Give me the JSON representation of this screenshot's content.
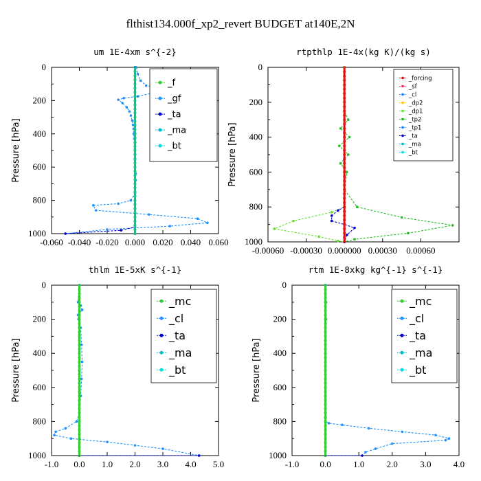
{
  "title": "flthist134.000f_xp2_revert  BUDGET at140E,2N",
  "chart_data": [
    {
      "type": "line",
      "title": "um  1E-4xm s^{-2}",
      "ylabel": "Pressure [hPa]",
      "xlim": [
        -0.06,
        0.06
      ],
      "ylim": [
        1000,
        0
      ],
      "xticks": [
        "-0.060",
        "-0.040",
        "-0.020",
        "0.000",
        "0.020",
        "0.040",
        "0.060"
      ],
      "yticks": [
        "0",
        "200",
        "400",
        "600",
        "800",
        "1000"
      ],
      "legend": [
        "_f",
        "_gf",
        "_ta",
        "_ma",
        "_bt"
      ],
      "series": [
        {
          "name": "_gf",
          "color": "#1e90ff",
          "x": [
            0.001,
            0.002,
            0.004,
            0.008,
            0.02,
            0.036,
            0.015,
            0.002,
            -0.008,
            -0.012,
            -0.009,
            -0.006,
            -0.004,
            -0.003,
            -0.002,
            -0.0015,
            -0.001,
            -0.001,
            -0.0005,
            0,
            0,
            0,
            0,
            0,
            0.0005,
            0.0005,
            0,
            0,
            -0.003,
            -0.012,
            -0.03,
            -0.028,
            0.01,
            0.045,
            0.052,
            0.025,
            -0.02,
            -0.05
          ],
          "y": [
            0,
            40,
            80,
            110,
            125,
            135,
            150,
            175,
            185,
            195,
            215,
            240,
            265,
            290,
            320,
            345,
            370,
            400,
            430,
            460,
            490,
            520,
            560,
            600,
            640,
            680,
            720,
            760,
            800,
            820,
            830,
            860,
            885,
            910,
            935,
            955,
            975,
            1000
          ]
        },
        {
          "name": "_ta",
          "color": "#0000cc",
          "x": [
            0,
            0,
            0,
            -0.01,
            -0.05
          ],
          "y": [
            0,
            900,
            960,
            980,
            1000
          ]
        },
        {
          "name": "_f",
          "color": "#33cc33",
          "x": [
            0,
            0
          ],
          "y": [
            0,
            1000
          ]
        },
        {
          "name": "_bt",
          "color": "#00cc88",
          "x": [
            0,
            0
          ],
          "y": [
            0,
            1000
          ]
        }
      ]
    },
    {
      "type": "line",
      "title": "rtpthlp  1E-4x(kg K)/(kg s)",
      "ylabel": "Pressure [hPa]",
      "xlim": [
        -0.0006,
        0.0009
      ],
      "ylim": [
        1000,
        0
      ],
      "xticks": [
        "-0.00060",
        "-0.00030",
        "0.000000",
        "0.00030",
        "0.00060"
      ],
      "yticks": [
        "0",
        "200",
        "400",
        "600",
        "800",
        "1000"
      ],
      "legend": [
        "_forcing",
        "_sf",
        "_cl",
        "_dp2",
        "_dp1",
        "_tp2",
        "_tp1",
        "_ta",
        "_ma",
        "_bt"
      ],
      "series": [
        {
          "name": "_tp2",
          "color": "#22bb22",
          "x": [
            0,
            0,
            3e-05,
            -3e-05,
            4e-05,
            -4e-05,
            3e-05,
            -3e-05,
            2e-05,
            0,
            0.0001,
            0.00045,
            0.00085,
            0.0005,
            8e-05,
            0
          ],
          "y": [
            0,
            250,
            300,
            350,
            400,
            450,
            500,
            550,
            600,
            700,
            800,
            860,
            905,
            950,
            985,
            1000
          ]
        },
        {
          "name": "_dp1",
          "color": "#66dd33",
          "x": [
            0,
            0,
            -0.0001,
            -0.0004,
            -0.00055,
            -0.0002,
            -5e-05,
            0
          ],
          "y": [
            0,
            800,
            830,
            880,
            925,
            970,
            995,
            1000
          ]
        },
        {
          "name": "_ta",
          "color": "#0000cc",
          "x": [
            0,
            -5e-05,
            -0.0001,
            -0.0001,
            0,
            8e-05,
            2e-05,
            0
          ],
          "y": [
            800,
            820,
            850,
            880,
            900,
            920,
            960,
            1000
          ]
        },
        {
          "name": "_forcing",
          "color": "#dd1111",
          "x": [
            0,
            0
          ],
          "y": [
            0,
            1000
          ]
        }
      ]
    },
    {
      "type": "line",
      "title": "thlm  1E-5xK s^{-1}",
      "ylabel": "Pressure [hPa]",
      "xlim": [
        -1.0,
        5.0
      ],
      "ylim": [
        1000,
        0
      ],
      "xticks": [
        "-1.0",
        "0.0",
        "1.0",
        "2.0",
        "3.0",
        "4.0",
        "5.0"
      ],
      "yticks": [
        "0",
        "200",
        "400",
        "600",
        "800",
        "1000"
      ],
      "legend": [
        "_mc",
        "_cl",
        "_ta",
        "_ma",
        "_bt"
      ],
      "series": [
        {
          "name": "_cl",
          "color": "#1e90ff",
          "x": [
            0,
            -0.05,
            0.05,
            0.1,
            -0.05,
            -0.03,
            0.05,
            0.08,
            0.1,
            0.08,
            0.05,
            0,
            -0.1,
            -0.5,
            -0.85,
            -0.9,
            -0.3,
            1.0,
            2.0,
            3.0,
            4.3
          ],
          "y": [
            0,
            100,
            120,
            145,
            175,
            200,
            250,
            350,
            450,
            550,
            650,
            750,
            800,
            840,
            860,
            880,
            900,
            920,
            940,
            960,
            1000
          ]
        },
        {
          "name": "_ta",
          "color": "#0000cc",
          "x": [
            0,
            4.3
          ],
          "y": [
            1000,
            1000
          ]
        },
        {
          "name": "_mc",
          "color": "#33cc33",
          "x": [
            0,
            0
          ],
          "y": [
            0,
            1000
          ]
        }
      ]
    },
    {
      "type": "line",
      "title": "rtm  1E-8xkg kg^{-1} s^{-1}",
      "ylabel": "Pressure [hPa]",
      "xlim": [
        -1.0,
        4.0
      ],
      "ylim": [
        1000,
        0
      ],
      "xticks": [
        "-1.0",
        "0.0",
        "1.0",
        "2.0",
        "3.0",
        "4.0"
      ],
      "yticks": [
        "0",
        "200",
        "400",
        "600",
        "800",
        "1000"
      ],
      "legend": [
        "_mc",
        "_cl",
        "_ta",
        "_ma",
        "_bt"
      ],
      "series": [
        {
          "name": "_cl",
          "color": "#1e90ff",
          "x": [
            0,
            0.02,
            0.02,
            0,
            0,
            0,
            0,
            0,
            0,
            0,
            0,
            0.1,
            0.5,
            1.3,
            2.3,
            3.3,
            3.7,
            3.6,
            2.0,
            1.5,
            1.2,
            1.1
          ],
          "y": [
            0,
            100,
            200,
            300,
            400,
            500,
            600,
            700,
            750,
            780,
            800,
            810,
            820,
            840,
            860,
            880,
            900,
            910,
            930,
            960,
            980,
            1000
          ]
        },
        {
          "name": "_ta",
          "color": "#0000cc",
          "x": [
            0,
            1.1
          ],
          "y": [
            1000,
            1000
          ]
        },
        {
          "name": "_mc",
          "color": "#33cc33",
          "x": [
            0,
            0
          ],
          "y": [
            0,
            1000
          ]
        }
      ]
    }
  ]
}
